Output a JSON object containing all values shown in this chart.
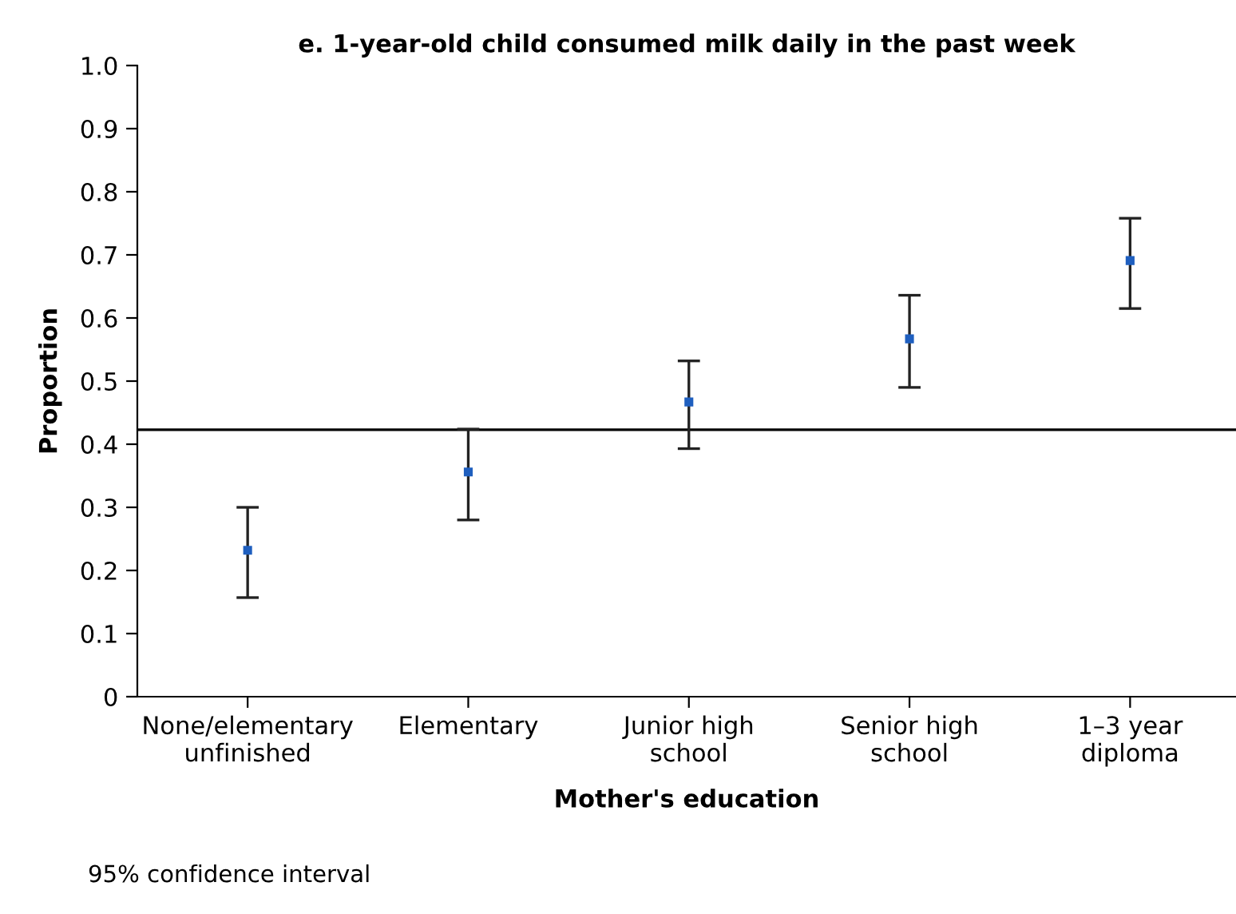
{
  "chart_data": {
    "type": "scatter",
    "title": "e. 1-year-old child consumed milk daily in the past week",
    "xlabel": "Mother's education",
    "ylabel": "Proportion",
    "categories": [
      "None/elementary\nunfinished",
      "Elementary",
      "Junior high\nschool",
      "Senior high\nschool",
      "1–3 year\ndiploma"
    ],
    "series": [
      {
        "color": "#1f5fbf",
        "values": [
          0.232,
          0.356,
          0.467,
          0.567,
          0.691
        ],
        "errors": [
          [
            0.157,
            0.3
          ],
          [
            0.28,
            0.424
          ],
          [
            0.393,
            0.532
          ],
          [
            0.49,
            0.636
          ],
          [
            0.615,
            0.758
          ]
        ]
      }
    ],
    "ylim": [
      0,
      1.0
    ],
    "yticks": [
      0,
      0.1,
      0.2,
      0.3,
      0.4,
      0.5,
      0.6,
      0.7,
      0.8,
      0.9,
      {
        "value": 1,
        "label": "1.0"
      }
    ],
    "ref_lines": [
      {
        "axis": "y",
        "value": 0.423,
        "color": "#000000"
      }
    ],
    "annotations": [
      "95% confidence interval"
    ],
    "grid": false,
    "legend": false
  }
}
